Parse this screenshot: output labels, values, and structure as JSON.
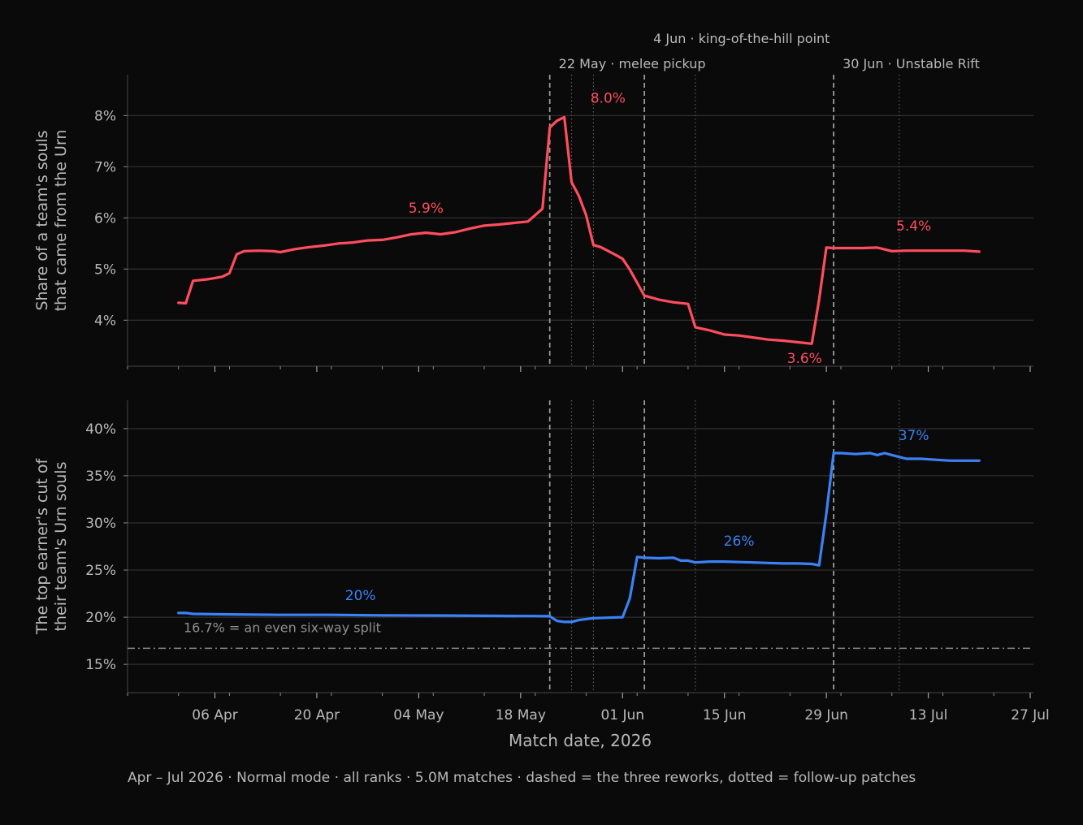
{
  "chart_data": [
    {
      "type": "line",
      "ylabel_lines": [
        "Share of a team's souls",
        "that came from the Urn"
      ],
      "ytick_labels": [
        "4%",
        "5%",
        "6%",
        "7%",
        "8%"
      ],
      "yticks": [
        4,
        5,
        6,
        7,
        8
      ],
      "ylim": [
        3.1,
        8.8
      ],
      "grid": true,
      "series": [
        {
          "color": "#ff4d5e",
          "x": [
            "2026-04-01",
            "2026-04-02",
            "2026-04-03",
            "2026-04-05",
            "2026-04-07",
            "2026-04-08",
            "2026-04-09",
            "2026-04-10",
            "2026-04-12",
            "2026-04-14",
            "2026-04-15",
            "2026-04-17",
            "2026-04-19",
            "2026-04-21",
            "2026-04-23",
            "2026-04-25",
            "2026-04-27",
            "2026-04-29",
            "2026-05-01",
            "2026-05-03",
            "2026-05-05",
            "2026-05-07",
            "2026-05-09",
            "2026-05-11",
            "2026-05-13",
            "2026-05-15",
            "2026-05-17",
            "2026-05-19",
            "2026-05-21",
            "2026-05-22",
            "2026-05-23",
            "2026-05-24",
            "2026-05-25",
            "2026-05-26",
            "2026-05-27",
            "2026-05-28",
            "2026-05-29",
            "2026-05-31",
            "2026-06-01",
            "2026-06-02",
            "2026-06-04",
            "2026-06-06",
            "2026-06-08",
            "2026-06-10",
            "2026-06-11",
            "2026-06-13",
            "2026-06-15",
            "2026-06-17",
            "2026-06-19",
            "2026-06-21",
            "2026-06-23",
            "2026-06-25",
            "2026-06-27",
            "2026-06-28",
            "2026-06-29",
            "2026-06-30",
            "2026-07-02",
            "2026-07-04",
            "2026-07-06",
            "2026-07-08",
            "2026-07-10",
            "2026-07-12",
            "2026-07-14",
            "2026-07-16",
            "2026-07-18",
            "2026-07-20"
          ],
          "y": [
            4.34,
            4.33,
            4.77,
            4.8,
            4.85,
            4.92,
            5.29,
            5.35,
            5.36,
            5.35,
            5.33,
            5.39,
            5.43,
            5.46,
            5.5,
            5.52,
            5.56,
            5.57,
            5.62,
            5.68,
            5.71,
            5.68,
            5.72,
            5.79,
            5.85,
            5.87,
            5.9,
            5.93,
            6.18,
            7.77,
            7.9,
            7.97,
            6.7,
            6.43,
            6.05,
            5.47,
            5.43,
            5.28,
            5.2,
            4.99,
            4.48,
            4.4,
            4.35,
            4.32,
            3.86,
            3.8,
            3.72,
            3.7,
            3.66,
            3.62,
            3.6,
            3.57,
            3.54,
            4.4,
            5.42,
            5.41,
            5.41,
            5.41,
            5.42,
            5.35,
            5.36,
            5.36,
            5.36,
            5.36,
            5.36,
            5.34
          ]
        }
      ],
      "annotations": [
        {
          "text": "5.9%",
          "x": "2026-05-05",
          "y": 6.1
        },
        {
          "text": "8.0%",
          "x": "2026-05-30",
          "y": 8.25
        },
        {
          "text": "3.6%",
          "x": "2026-06-26",
          "y": 3.16
        },
        {
          "text": "5.4%",
          "x": "2026-07-11",
          "y": 5.75
        }
      ]
    },
    {
      "type": "line",
      "ylabel_lines": [
        "The top earner's cut of",
        "their team's Urn souls"
      ],
      "ytick_labels": [
        "15%",
        "20%",
        "25%",
        "30%",
        "35%",
        "40%"
      ],
      "yticks": [
        15,
        20,
        25,
        30,
        35,
        40
      ],
      "ylim": [
        12,
        43
      ],
      "grid": true,
      "series": [
        {
          "color": "#3b82f6",
          "x": [
            "2026-04-01",
            "2026-04-02",
            "2026-04-03",
            "2026-04-08",
            "2026-04-15",
            "2026-04-22",
            "2026-04-29",
            "2026-05-06",
            "2026-05-13",
            "2026-05-20",
            "2026-05-22",
            "2026-05-23",
            "2026-05-24",
            "2026-05-25",
            "2026-05-26",
            "2026-05-27",
            "2026-05-28",
            "2026-05-30",
            "2026-06-01",
            "2026-06-02",
            "2026-06-03",
            "2026-06-04",
            "2026-06-06",
            "2026-06-08",
            "2026-06-09",
            "2026-06-10",
            "2026-06-11",
            "2026-06-13",
            "2026-06-15",
            "2026-06-17",
            "2026-06-19",
            "2026-06-21",
            "2026-06-23",
            "2026-06-25",
            "2026-06-27",
            "2026-06-28",
            "2026-06-29",
            "2026-06-30",
            "2026-07-01",
            "2026-07-03",
            "2026-07-05",
            "2026-07-06",
            "2026-07-07",
            "2026-07-08",
            "2026-07-10",
            "2026-07-12",
            "2026-07-14",
            "2026-07-16",
            "2026-07-18",
            "2026-07-20"
          ],
          "y": [
            20.45,
            20.45,
            20.35,
            20.3,
            20.25,
            20.25,
            20.2,
            20.18,
            20.15,
            20.12,
            20.1,
            19.6,
            19.5,
            19.5,
            19.7,
            19.8,
            19.9,
            19.95,
            20.0,
            22.0,
            26.4,
            26.3,
            26.25,
            26.3,
            26.0,
            26.0,
            25.8,
            25.9,
            25.9,
            25.85,
            25.8,
            25.75,
            25.7,
            25.7,
            25.65,
            25.5,
            31.0,
            37.4,
            37.4,
            37.3,
            37.4,
            37.2,
            37.4,
            37.2,
            36.8,
            36.8,
            36.7,
            36.6,
            36.6,
            36.6
          ]
        }
      ],
      "reference_line": {
        "y": 16.7,
        "label": "16.7% = an even six-way split"
      },
      "annotations": [
        {
          "text": "20%",
          "x": "2026-04-26",
          "y": 21.8
        },
        {
          "text": "26%",
          "x": "2026-06-17",
          "y": 27.6
        },
        {
          "text": "37%",
          "x": "2026-07-11",
          "y": 38.8
        }
      ]
    }
  ],
  "x_axis": {
    "xlabel": "Match date, 2026",
    "xlim": [
      "2026-03-25",
      "2026-07-27"
    ],
    "tick_dates": [
      "2026-04-06",
      "2026-04-20",
      "2026-05-04",
      "2026-05-18",
      "2026-06-01",
      "2026-06-15",
      "2026-06-29",
      "2026-07-13",
      "2026-07-27"
    ],
    "tick_labels": [
      "06 Apr",
      "20 Apr",
      "04 May",
      "18 May",
      "01 Jun",
      "15 Jun",
      "29 Jun",
      "13 Jul",
      "27 Jul"
    ]
  },
  "reworks": [
    {
      "date": "2026-05-22",
      "label": "22 May · melee pickup"
    },
    {
      "date": "2026-06-04",
      "label": "4 Jun · king-of-the-hill point"
    },
    {
      "date": "2026-06-30",
      "label": "30 Jun · Unstable Rift"
    }
  ],
  "followup_patches": [
    "2026-05-25",
    "2026-05-28",
    "2026-06-11",
    "2026-07-09"
  ],
  "footnote": "Apr – Jul 2026 · Normal mode · all ranks · 5.0M matches · dashed = the three reworks, dotted = follow-up patches",
  "colors": {
    "background": "#0a0a0b",
    "top_series": "#ff4d5e",
    "bottom_series": "#3b82f6",
    "text": "#b9b9b9",
    "grid": "#2e2e30"
  }
}
